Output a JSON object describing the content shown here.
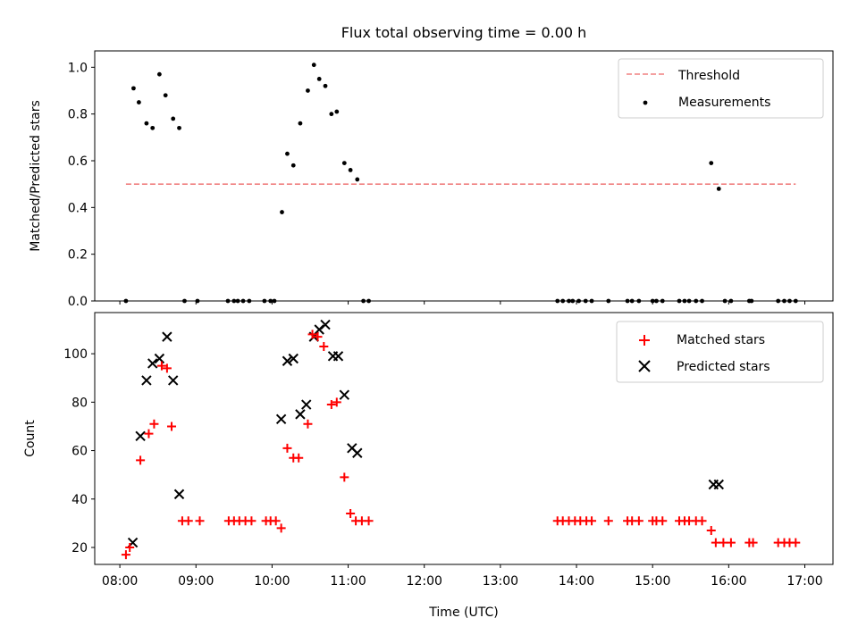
{
  "chart_data": [
    {
      "type": "scatter",
      "title": "Flux total observing time = 0.00 h",
      "xlabel": "",
      "ylabel": "Matched/Predicted stars",
      "xlim": [
        7.67,
        17.37
      ],
      "ylim": [
        0,
        1.07
      ],
      "yticks": [
        {
          "v": 0.0,
          "label": "0.0"
        },
        {
          "v": 0.2,
          "label": "0.2"
        },
        {
          "v": 0.4,
          "label": "0.4"
        },
        {
          "v": 0.6,
          "label": "0.6"
        },
        {
          "v": 0.8,
          "label": "0.8"
        },
        {
          "v": 1.0,
          "label": "1.0"
        }
      ],
      "legend": {
        "position": "top-right",
        "entries": [
          {
            "label": "Threshold",
            "style": "dashed-line",
            "color": "#f08080"
          },
          {
            "label": "Measurements",
            "style": "dot",
            "color": "#000000"
          }
        ]
      },
      "threshold": {
        "value": 0.5,
        "x_start": 8.08,
        "x_end": 16.88,
        "color": "#f08080"
      },
      "points": {
        "x": [
          8.08,
          8.18,
          8.25,
          8.35,
          8.43,
          8.52,
          8.6,
          8.7,
          8.78,
          8.85,
          9.02,
          9.42,
          9.5,
          9.55,
          9.62,
          9.7,
          9.9,
          9.98,
          10.03,
          10.13,
          10.2,
          10.28,
          10.37,
          10.47,
          10.55,
          10.62,
          10.7,
          10.78,
          10.85,
          10.95,
          11.03,
          11.12,
          11.2,
          11.27,
          13.75,
          13.82,
          13.9,
          13.95,
          14.03,
          14.12,
          14.2,
          14.42,
          14.67,
          14.73,
          14.82,
          15.0,
          15.05,
          15.13,
          15.35,
          15.42,
          15.48,
          15.57,
          15.65,
          15.77,
          15.87,
          15.95,
          16.03,
          16.27,
          16.3,
          16.65,
          16.73,
          16.8,
          16.88
        ],
        "y": [
          0,
          0.91,
          0.85,
          0.76,
          0.74,
          0.97,
          0.88,
          0.78,
          0.74,
          0,
          0,
          0,
          0,
          0,
          0,
          0,
          0,
          0,
          0,
          0.38,
          0.63,
          0.58,
          0.76,
          0.9,
          1.01,
          0.95,
          0.92,
          0.8,
          0.81,
          0.59,
          0.56,
          0.52,
          0,
          0,
          0,
          0,
          0,
          0,
          0,
          0,
          0,
          0,
          0,
          0,
          0,
          0,
          0,
          0,
          0,
          0,
          0,
          0,
          0,
          0.59,
          0.48,
          0,
          0,
          0,
          0,
          0,
          0,
          0,
          0
        ]
      }
    },
    {
      "type": "scatter",
      "title": "",
      "xlabel": "Time (UTC)",
      "ylabel": "Count",
      "xlim": [
        7.67,
        17.37
      ],
      "ylim": [
        13,
        117
      ],
      "xticks": [
        {
          "v": 8,
          "label": "08:00"
        },
        {
          "v": 9,
          "label": "09:00"
        },
        {
          "v": 10,
          "label": "10:00"
        },
        {
          "v": 11,
          "label": "11:00"
        },
        {
          "v": 12,
          "label": "12:00"
        },
        {
          "v": 13,
          "label": "13:00"
        },
        {
          "v": 14,
          "label": "14:00"
        },
        {
          "v": 15,
          "label": "15:00"
        },
        {
          "v": 16,
          "label": "16:00"
        },
        {
          "v": 17,
          "label": "17:00"
        }
      ],
      "yticks": [
        {
          "v": 20,
          "label": "20"
        },
        {
          "v": 40,
          "label": "40"
        },
        {
          "v": 60,
          "label": "60"
        },
        {
          "v": 80,
          "label": "80"
        },
        {
          "v": 100,
          "label": "100"
        }
      ],
      "legend": {
        "position": "top-right",
        "entries": [
          {
            "label": "Matched stars",
            "style": "plus",
            "color": "#ff0000"
          },
          {
            "label": "Predicted stars",
            "style": "cross",
            "color": "#000000"
          }
        ]
      },
      "series": [
        {
          "name": "Matched stars",
          "marker": "plus",
          "color": "#ff0000",
          "x": [
            8.08,
            8.13,
            8.27,
            8.38,
            8.45,
            8.55,
            8.62,
            8.68,
            8.82,
            8.9,
            9.05,
            9.43,
            9.5,
            9.57,
            9.65,
            9.73,
            9.92,
            9.98,
            10.05,
            10.12,
            10.2,
            10.28,
            10.35,
            10.47,
            10.53,
            10.6,
            10.68,
            10.78,
            10.85,
            10.95,
            11.03,
            11.1,
            11.18,
            11.27,
            13.75,
            13.82,
            13.9,
            13.98,
            14.05,
            14.13,
            14.2,
            14.42,
            14.67,
            14.73,
            14.82,
            15.0,
            15.05,
            15.13,
            15.35,
            15.42,
            15.48,
            15.57,
            15.65,
            15.77,
            15.83,
            15.93,
            16.03,
            16.27,
            16.32,
            16.65,
            16.73,
            16.8,
            16.88
          ],
          "y": [
            17,
            20,
            56,
            67,
            71,
            95,
            94,
            70,
            31,
            31,
            31,
            31,
            31,
            31,
            31,
            31,
            31,
            31,
            31,
            28,
            61,
            57,
            57,
            71,
            108,
            107,
            103,
            79,
            80,
            49,
            34,
            31,
            31,
            31,
            31,
            31,
            31,
            31,
            31,
            31,
            31,
            31,
            31,
            31,
            31,
            31,
            31,
            31,
            31,
            31,
            31,
            31,
            31,
            27,
            22,
            22,
            22,
            22,
            22,
            22,
            22,
            22,
            22
          ]
        },
        {
          "name": "Predicted stars",
          "marker": "cross",
          "color": "#000000",
          "x": [
            8.17,
            8.27,
            8.35,
            8.43,
            8.52,
            8.62,
            8.7,
            8.78,
            10.12,
            10.2,
            10.28,
            10.37,
            10.45,
            10.55,
            10.62,
            10.7,
            10.8,
            10.87,
            10.95,
            11.05,
            11.12,
            15.8,
            15.87
          ],
          "y": [
            22,
            66,
            89,
            96,
            98,
            107,
            89,
            42,
            73,
            97,
            98,
            75,
            79,
            107,
            110,
            112,
            99,
            99,
            83,
            61,
            59,
            46,
            46
          ]
        }
      ]
    }
  ]
}
